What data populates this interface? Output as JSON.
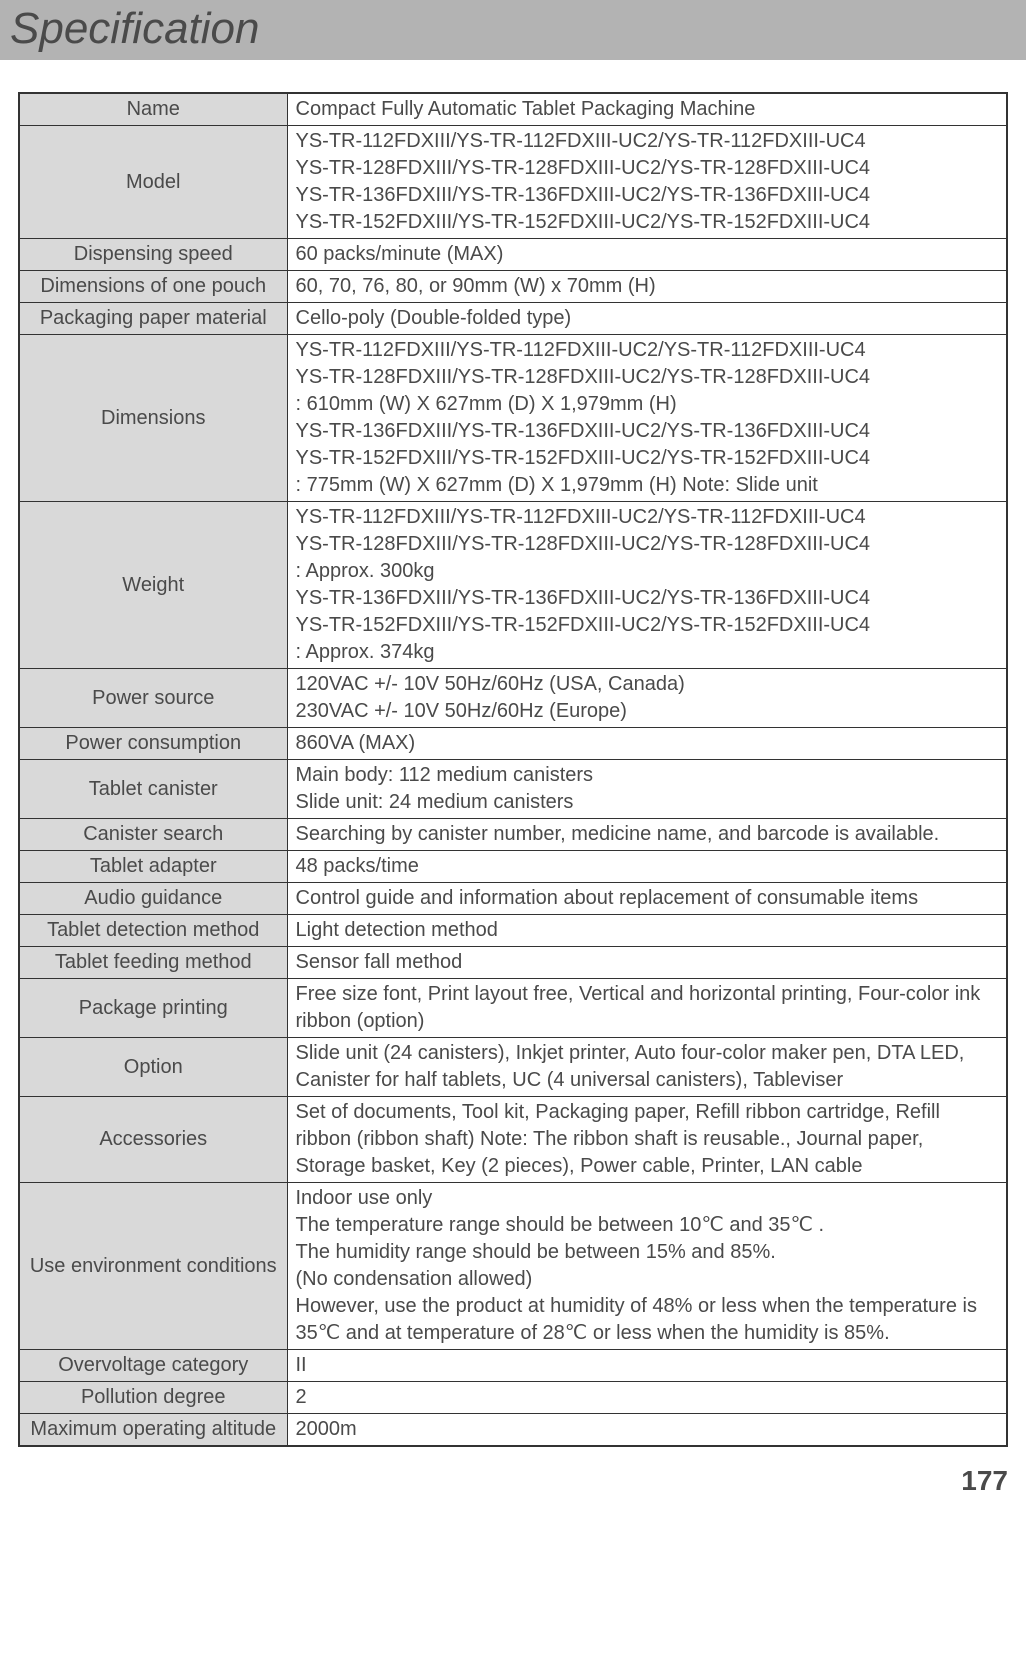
{
  "header": {
    "title": "Specification"
  },
  "table": {
    "label_bg": "#d9d9d9",
    "value_bg": "#ffffff",
    "border_color": "#333333",
    "text_color": "#4a4a4a",
    "font_size": 20,
    "label_width": 268,
    "rows": [
      {
        "label": "Name",
        "value": "Compact Fully Automatic Tablet Packaging Machine"
      },
      {
        "label": "Model",
        "value": "YS-TR-112FDXIII/YS-TR-112FDXIII-UC2/YS-TR-112FDXIII-UC4\nYS-TR-128FDXIII/YS-TR-128FDXIII-UC2/YS-TR-128FDXIII-UC4\nYS-TR-136FDXIII/YS-TR-136FDXIII-UC2/YS-TR-136FDXIII-UC4\nYS-TR-152FDXIII/YS-TR-152FDXIII-UC2/YS-TR-152FDXIII-UC4"
      },
      {
        "label": "Dispensing speed",
        "value": "60 packs/minute (MAX)"
      },
      {
        "label": "Dimensions of one pouch",
        "value": "60, 70, 76, 80, or 90mm (W) x 70mm (H)"
      },
      {
        "label": "Packaging paper material",
        "value": "Cello-poly (Double-folded type)"
      },
      {
        "label": "Dimensions",
        "value": "YS-TR-112FDXIII/YS-TR-112FDXIII-UC2/YS-TR-112FDXIII-UC4\nYS-TR-128FDXIII/YS-TR-128FDXIII-UC2/YS-TR-128FDXIII-UC4\n: 610mm (W) X 627mm (D) X 1,979mm (H)\nYS-TR-136FDXIII/YS-TR-136FDXIII-UC2/YS-TR-136FDXIII-UC4\nYS-TR-152FDXIII/YS-TR-152FDXIII-UC2/YS-TR-152FDXIII-UC4\n: 775mm (W) X 627mm (D) X 1,979mm (H) Note: Slide unit"
      },
      {
        "label": "Weight",
        "value": "YS-TR-112FDXIII/YS-TR-112FDXIII-UC2/YS-TR-112FDXIII-UC4\nYS-TR-128FDXIII/YS-TR-128FDXIII-UC2/YS-TR-128FDXIII-UC4\n: Approx. 300kg\nYS-TR-136FDXIII/YS-TR-136FDXIII-UC2/YS-TR-136FDXIII-UC4\nYS-TR-152FDXIII/YS-TR-152FDXIII-UC2/YS-TR-152FDXIII-UC4\n: Approx. 374kg"
      },
      {
        "label": "Power source",
        "value": "120VAC +/- 10V 50Hz/60Hz (USA, Canada)\n230VAC +/- 10V 50Hz/60Hz (Europe)"
      },
      {
        "label": "Power consumption",
        "value": "860VA (MAX)"
      },
      {
        "label": "Tablet canister",
        "value": "Main body: 112 medium canisters\nSlide unit: 24 medium canisters"
      },
      {
        "label": "Canister search",
        "value": "Searching by canister number, medicine name, and barcode is available."
      },
      {
        "label": "Tablet adapter",
        "value": "48 packs/time"
      },
      {
        "label": "Audio guidance",
        "value": "Control guide and information about replacement of consumable items"
      },
      {
        "label": "Tablet detection method",
        "value": "Light detection method"
      },
      {
        "label": "Tablet feeding method",
        "value": "Sensor fall method"
      },
      {
        "label": "Package printing",
        "value": "Free size font, Print layout free, Vertical and horizontal printing, Four-color ink ribbon (option)"
      },
      {
        "label": "Option",
        "value": "Slide unit (24 canisters), Inkjet printer, Auto four-color maker pen, DTA LED, Canister for half tablets, UC (4 universal canisters), Tableviser"
      },
      {
        "label": "Accessories",
        "value": "Set of documents, Tool kit, Packaging paper, Refill ribbon cartridge, Refill ribbon (ribbon shaft) Note: The ribbon shaft is reusable., Journal paper, Storage basket, Key (2 pieces), Power cable, Printer, LAN cable"
      },
      {
        "label": "Use environment conditions",
        "value": "Indoor use only\nThe temperature range should be between 10℃ and 35℃ .\nThe humidity range should be between 15% and 85%.\n(No condensation allowed)\nHowever, use the product at humidity of 48% or less when the temperature is 35℃ and at temperature of 28℃ or less when the humidity is 85%."
      },
      {
        "label": "Overvoltage category",
        "value": "II"
      },
      {
        "label": "Pollution degree",
        "value": "2"
      },
      {
        "label": "Maximum operating altitude",
        "value": "2000m"
      }
    ]
  },
  "page_number": "177"
}
